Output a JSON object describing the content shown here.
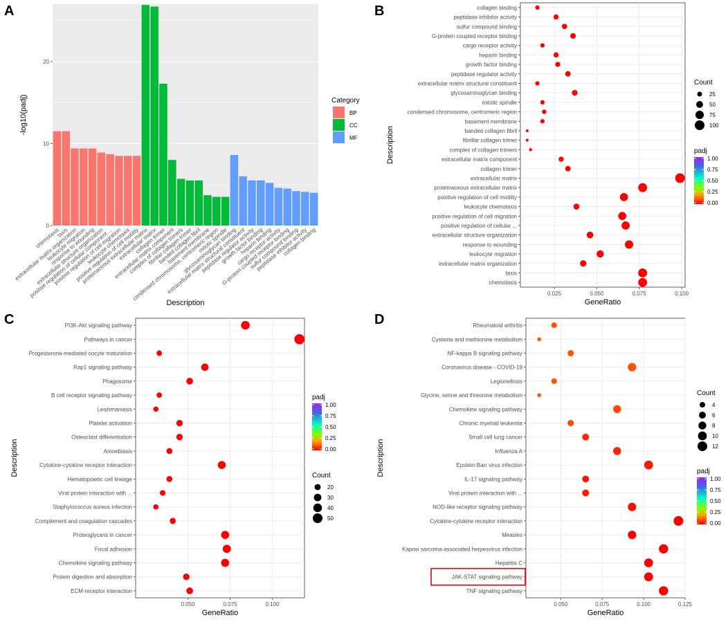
{
  "chart_data": [
    {
      "panel": "A",
      "type": "bar",
      "ylabel": "-log10(padj)",
      "xlabel": "Description",
      "ylim": [
        0,
        27
      ],
      "yticks": [
        0,
        10,
        20
      ],
      "legend": {
        "title": "Category",
        "entries": [
          {
            "label": "BP",
            "color": "#F8766D"
          },
          {
            "label": "CC",
            "color": "#00BA38"
          },
          {
            "label": "MF",
            "color": "#619CFF"
          }
        ]
      },
      "bars": [
        {
          "label": "chemotaxis",
          "value": 11.5,
          "category": "BP"
        },
        {
          "label": "taxis",
          "value": 11.5,
          "category": "BP"
        },
        {
          "label": "extracellular matrix organization",
          "value": 9.4,
          "category": "BP"
        },
        {
          "label": "leukocyte migration",
          "value": 9.4,
          "category": "BP"
        },
        {
          "label": "response to wounding",
          "value": 9.4,
          "category": "BP"
        },
        {
          "label": "extracellular structure organization",
          "value": 8.9,
          "category": "BP"
        },
        {
          "label": "positive regulation of cellular component ...",
          "value": 8.7,
          "category": "BP"
        },
        {
          "label": "positive regulation of cell migration",
          "value": 8.5,
          "category": "BP"
        },
        {
          "label": "leukocyte chemotaxis",
          "value": 8.5,
          "category": "BP"
        },
        {
          "label": "positive regulation of cell motility",
          "value": 8.5,
          "category": "BP"
        },
        {
          "label": "proteinaceous extracellular matrix",
          "value": 26.9,
          "category": "CC"
        },
        {
          "label": "extracellular matrix",
          "value": 26.7,
          "category": "CC"
        },
        {
          "label": "collagen trimer",
          "value": 17.3,
          "category": "CC"
        },
        {
          "label": "extracellular matrix component",
          "value": 8.0,
          "category": "CC"
        },
        {
          "label": "complex of collagen trimers",
          "value": 5.7,
          "category": "CC"
        },
        {
          "label": "fibrillar collagen trimer",
          "value": 5.5,
          "category": "CC"
        },
        {
          "label": "banded collagen fibril",
          "value": 5.5,
          "category": "CC"
        },
        {
          "label": "basement membrane",
          "value": 3.7,
          "category": "CC"
        },
        {
          "label": "condensed chromosome, centromeric region",
          "value": 3.5,
          "category": "CC"
        },
        {
          "label": "mitotic spindle",
          "value": 3.5,
          "category": "CC"
        },
        {
          "label": "glycosaminoglycan binding",
          "value": 8.6,
          "category": "MF"
        },
        {
          "label": "extracellular matrix structural constituent",
          "value": 6.0,
          "category": "MF"
        },
        {
          "label": "peptidase regulator activity",
          "value": 5.5,
          "category": "MF"
        },
        {
          "label": "growth factor binding",
          "value": 5.5,
          "category": "MF"
        },
        {
          "label": "heparin binding",
          "value": 5.2,
          "category": "MF"
        },
        {
          "label": "cargo receptor activity",
          "value": 4.6,
          "category": "MF"
        },
        {
          "label": "G-protein coupled receptor binding",
          "value": 4.5,
          "category": "MF"
        },
        {
          "label": "sulfur compound binding",
          "value": 4.2,
          "category": "MF"
        },
        {
          "label": "peptidase inhibitor activity",
          "value": 4.1,
          "category": "MF"
        },
        {
          "label": "collagen binding",
          "value": 4.0,
          "category": "MF"
        }
      ]
    },
    {
      "panel": "B",
      "type": "scatter",
      "xlabel": "GeneRatio",
      "ylabel": "Description",
      "xlim": [
        0.005,
        0.102
      ],
      "xticks": [
        {
          "v": 0.025,
          "t": "0.025"
        },
        {
          "v": 0.05,
          "t": "0.050"
        },
        {
          "v": 0.075,
          "t": "0.075"
        },
        {
          "v": 0.1,
          "t": "0.100"
        }
      ],
      "size_legend": {
        "title": "Count",
        "values": [
          25,
          50,
          75,
          100
        ]
      },
      "color_legend": {
        "title": "padj",
        "ticks": [
          "1.00",
          "0.75",
          "0.50",
          "0.25",
          "0.00"
        ]
      },
      "points": [
        {
          "label": "collagen binding",
          "x": 0.015,
          "count": 20,
          "padj": 0.0
        },
        {
          "label": "peptidase inhibitor activity",
          "x": 0.026,
          "count": 28,
          "padj": 0.0
        },
        {
          "label": "sulfur compound binding",
          "x": 0.031,
          "count": 30,
          "padj": 0.0
        },
        {
          "label": "G-protein coupled receptor binding",
          "x": 0.036,
          "count": 33,
          "padj": 0.0
        },
        {
          "label": "cargo receptor activity",
          "x": 0.018,
          "count": 20,
          "padj": 0.0
        },
        {
          "label": "heparin binding",
          "x": 0.026,
          "count": 28,
          "padj": 0.0
        },
        {
          "label": "growth factor binding",
          "x": 0.027,
          "count": 28,
          "padj": 0.0
        },
        {
          "label": "peptidase regulator activity",
          "x": 0.033,
          "count": 32,
          "padj": 0.0
        },
        {
          "label": "extracellular matrix structural constituent",
          "x": 0.015,
          "count": 20,
          "padj": 0.0
        },
        {
          "label": "glycosaminoglycan binding",
          "x": 0.037,
          "count": 35,
          "padj": 0.0
        },
        {
          "label": "mitotic spindle",
          "x": 0.018,
          "count": 20,
          "padj": 0.0
        },
        {
          "label": "condensed chromosome, centromeric region",
          "x": 0.019,
          "count": 21,
          "padj": 0.0
        },
        {
          "label": "basement membrane",
          "x": 0.018,
          "count": 20,
          "padj": 0.0
        },
        {
          "label": "banded collagen fibril",
          "x": 0.009,
          "count": 8,
          "padj": 0.0
        },
        {
          "label": "fibrillar collagen trimer",
          "x": 0.009,
          "count": 8,
          "padj": 0.0
        },
        {
          "label": "complex of collagen trimers",
          "x": 0.011,
          "count": 10,
          "padj": 0.0
        },
        {
          "label": "extracellular matrix component",
          "x": 0.029,
          "count": 28,
          "padj": 0.0
        },
        {
          "label": "collagen trimer",
          "x": 0.033,
          "count": 32,
          "padj": 0.0
        },
        {
          "label": "extracellular matrix",
          "x": 0.099,
          "count": 100,
          "padj": 0.0
        },
        {
          "label": "proteinaceous extracellular matrix",
          "x": 0.077,
          "count": 85,
          "padj": 0.0
        },
        {
          "label": "positive regulation of cell motility",
          "x": 0.066,
          "count": 70,
          "padj": 0.0
        },
        {
          "label": "leukocyte chemotaxis",
          "x": 0.038,
          "count": 38,
          "padj": 0.0
        },
        {
          "label": "positive regulation of cell migration",
          "x": 0.065,
          "count": 70,
          "padj": 0.0
        },
        {
          "label": "positive regulation of cellular ...",
          "x": 0.067,
          "count": 72,
          "padj": 0.0
        },
        {
          "label": "extracellular structure organization",
          "x": 0.046,
          "count": 48,
          "padj": 0.0
        },
        {
          "label": "response to wounding",
          "x": 0.069,
          "count": 74,
          "padj": 0.0
        },
        {
          "label": "leukocyte migration",
          "x": 0.052,
          "count": 56,
          "padj": 0.0
        },
        {
          "label": "extracellular matrix organization",
          "x": 0.042,
          "count": 44,
          "padj": 0.0
        },
        {
          "label": "taxis",
          "x": 0.077,
          "count": 85,
          "padj": 0.0
        },
        {
          "label": "chemotaxis",
          "x": 0.077,
          "count": 85,
          "padj": 0.0
        }
      ]
    },
    {
      "panel": "C",
      "type": "scatter",
      "xlabel": "GeneRatio",
      "ylabel": "Description",
      "xlim": [
        0.019,
        0.119
      ],
      "xticks": [
        {
          "v": 0.05,
          "t": "0.050"
        },
        {
          "v": 0.075,
          "t": "0.075"
        },
        {
          "v": 0.1,
          "t": "0.100"
        }
      ],
      "size_legend": {
        "title": "Count",
        "values": [
          20,
          30,
          40,
          50
        ]
      },
      "color_legend": {
        "title": "padj",
        "ticks": [
          "1.00",
          "0.75",
          "0.50",
          "0.25",
          "0.00"
        ]
      },
      "points": [
        {
          "label": "PI3K-Akt signaling pathway",
          "x": 0.084,
          "count": 40,
          "padj": 0.0
        },
        {
          "label": "Pathways in cancer",
          "x": 0.116,
          "count": 55,
          "padj": 0.0
        },
        {
          "label": "Progesterone-mediated oocyte maturation",
          "x": 0.033,
          "count": 16,
          "padj": 0.0
        },
        {
          "label": "Rap1 signaling pathway",
          "x": 0.06,
          "count": 29,
          "padj": 0.0
        },
        {
          "label": "Phagosome",
          "x": 0.051,
          "count": 24,
          "padj": 0.0
        },
        {
          "label": "B cell receptor signaling pathway",
          "x": 0.033,
          "count": 16,
          "padj": 0.0
        },
        {
          "label": "Leishmaniasis",
          "x": 0.031,
          "count": 15,
          "padj": 0.0
        },
        {
          "label": "Platelet activation",
          "x": 0.045,
          "count": 22,
          "padj": 0.0
        },
        {
          "label": "Osteoclast differentiation",
          "x": 0.045,
          "count": 22,
          "padj": 0.0
        },
        {
          "label": "Amoebiasis",
          "x": 0.039,
          "count": 19,
          "padj": 0.0
        },
        {
          "label": "Cytokine-cytokine receptor interaction",
          "x": 0.07,
          "count": 34,
          "padj": 0.0
        },
        {
          "label": "Hematopoietic cell lineage",
          "x": 0.039,
          "count": 19,
          "padj": 0.0
        },
        {
          "label": "Viral protein interaction with ...",
          "x": 0.035,
          "count": 17,
          "padj": 0.0
        },
        {
          "label": "Staphylococcus aureus infection",
          "x": 0.031,
          "count": 15,
          "padj": 0.0
        },
        {
          "label": "Complement and coagulation cascades",
          "x": 0.041,
          "count": 20,
          "padj": 0.0
        },
        {
          "label": "Proteoglycans in cancer",
          "x": 0.072,
          "count": 35,
          "padj": 0.0
        },
        {
          "label": "Focal adhesion",
          "x": 0.073,
          "count": 36,
          "padj": 0.0
        },
        {
          "label": "Chemokine signaling pathway",
          "x": 0.072,
          "count": 35,
          "padj": 0.0
        },
        {
          "label": "Protein digestion and absorption",
          "x": 0.049,
          "count": 23,
          "padj": 0.0
        },
        {
          "label": "ECM-receptor interaction",
          "x": 0.051,
          "count": 24,
          "padj": 0.0
        }
      ]
    },
    {
      "panel": "D",
      "type": "scatter",
      "xlabel": "GeneRatio",
      "ylabel": "Description",
      "xlim": [
        0.029,
        0.125
      ],
      "xticks": [
        {
          "v": 0.05,
          "t": "0.050"
        },
        {
          "v": 0.075,
          "t": "0.075"
        },
        {
          "v": 0.1,
          "t": "0.100"
        },
        {
          "v": 0.125,
          "t": "0.125"
        }
      ],
      "size_legend": {
        "title": "Count",
        "values": [
          4,
          6,
          8,
          10,
          12
        ]
      },
      "color_legend": {
        "title": "padj",
        "ticks": [
          "1.00",
          "0.75",
          "0.50",
          "0.25",
          "0.00"
        ]
      },
      "highlight": "JAK-STAT signaling pathway",
      "points": [
        {
          "label": "Rheumatoid arthritis",
          "x": 0.046,
          "count": 4,
          "padj": 0.07
        },
        {
          "label": "Cysteine and methionine metabolism",
          "x": 0.037,
          "count": 2,
          "padj": 0.08
        },
        {
          "label": "NF-kappa B signaling pathway",
          "x": 0.056,
          "count": 5,
          "padj": 0.07
        },
        {
          "label": "Coronavirus disease - COVID-19",
          "x": 0.093,
          "count": 9,
          "padj": 0.07
        },
        {
          "label": "Legionellosis",
          "x": 0.046,
          "count": 4,
          "padj": 0.07
        },
        {
          "label": "Glycine, serine and threonine metabolism",
          "x": 0.037,
          "count": 2,
          "padj": 0.08
        },
        {
          "label": "Chemokine signaling pathway",
          "x": 0.084,
          "count": 8,
          "padj": 0.06
        },
        {
          "label": "Chronic myeloid leukemia",
          "x": 0.056,
          "count": 5,
          "padj": 0.06
        },
        {
          "label": "Small cell lung cancer",
          "x": 0.065,
          "count": 6,
          "padj": 0.03
        },
        {
          "label": "Influenza A",
          "x": 0.084,
          "count": 8,
          "padj": 0.03
        },
        {
          "label": "Epstein-Barr virus infection",
          "x": 0.103,
          "count": 10,
          "padj": 0.02
        },
        {
          "label": "IL-17 signaling pathway",
          "x": 0.065,
          "count": 6,
          "padj": 0.02
        },
        {
          "label": "Viral protein interaction with ...",
          "x": 0.065,
          "count": 6,
          "padj": 0.02
        },
        {
          "label": "NOD-like receptor signaling pathway",
          "x": 0.093,
          "count": 9,
          "padj": 0.01
        },
        {
          "label": "Cytokine-cytokine receptor interaction",
          "x": 0.121,
          "count": 12,
          "padj": 0.0
        },
        {
          "label": "Measles",
          "x": 0.093,
          "count": 9,
          "padj": 0.0
        },
        {
          "label": "Kaposi sarcoma-associated herpesvirus infection",
          "x": 0.112,
          "count": 11,
          "padj": 0.0
        },
        {
          "label": "Hepatitis C",
          "x": 0.103,
          "count": 10,
          "padj": 0.0
        },
        {
          "label": "JAK-STAT signaling pathway",
          "x": 0.103,
          "count": 10,
          "padj": 0.0
        },
        {
          "label": "TNF signaling pathway",
          "x": 0.112,
          "count": 11,
          "padj": 0.0
        }
      ]
    }
  ]
}
